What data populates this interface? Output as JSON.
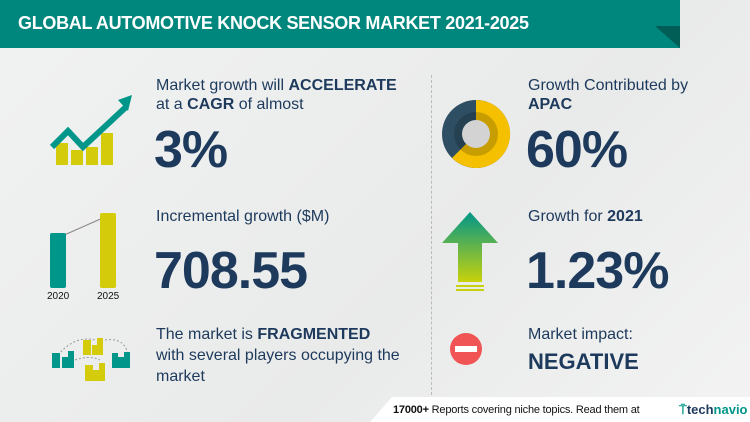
{
  "header": {
    "title": "GLOBAL AUTOMOTIVE KNOCK SENSOR MARKET 2021-2025"
  },
  "cagr": {
    "line1_prefix": "Market growth will ",
    "line1_emph": "ACCELERATE",
    "line2_prefix": "at a ",
    "line2_emph": "CAGR",
    "line2_suffix": " of almost",
    "value": "3%"
  },
  "incremental": {
    "label": "Incremental growth ($M)",
    "value": "708.55",
    "bar_labels": [
      "2020",
      "2025"
    ]
  },
  "market": {
    "line1_prefix": "The market is ",
    "line1_emph": "FRAGMENTED",
    "line2": "with several players occupying the",
    "line3": "market"
  },
  "region": {
    "line1": "Growth Contributed by",
    "line2": "APAC",
    "value": "60%",
    "share": 0.6
  },
  "yoy": {
    "label_prefix": "Growth for ",
    "year": "2021",
    "value": "1.23%"
  },
  "impact": {
    "label": "Market impact:",
    "value": "NEGATIVE"
  },
  "footer": {
    "count": "17000+",
    "text": "Reports covering niche topics. Read them at",
    "logo_a": "tech",
    "logo_b": "navio"
  },
  "colors": {
    "teal": "#00877d",
    "yellow": "#d4cc0a",
    "navy": "#1d3a5c",
    "red": "#f05454"
  }
}
